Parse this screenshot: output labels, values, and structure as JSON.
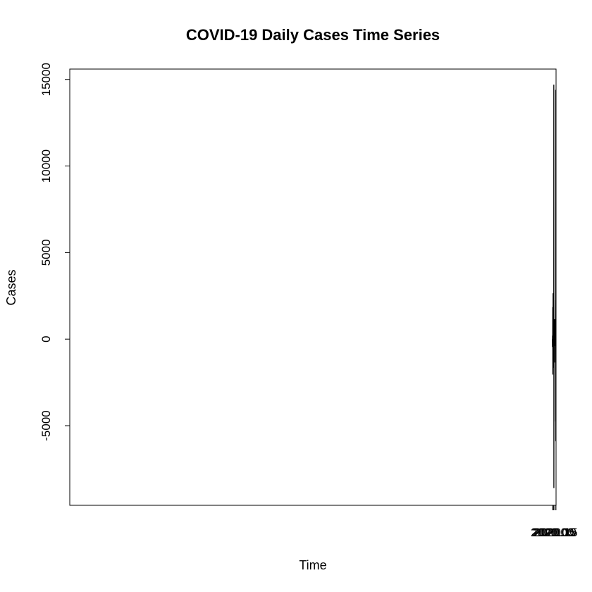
{
  "chart_data": {
    "type": "line",
    "title": "COVID-19 Daily Cases Time Series",
    "xlabel": "Time",
    "ylabel": "Cases",
    "xlim": [
      1999.9944,
      2020.1536
    ],
    "ylim": [
      -9600,
      15600
    ],
    "x_ticks": [
      2020.0,
      2020.05,
      2020.1,
      2020.15
    ],
    "x_tick_labels": [
      "2020.00",
      "2020.05",
      "2020.10",
      "2020.15"
    ],
    "y_ticks": [
      -5000,
      0,
      5000,
      10000,
      15000
    ],
    "y_tick_labels": [
      "-5000",
      "0",
      "5000",
      "10000",
      "15000"
    ],
    "grid": false,
    "line_color": "#000000",
    "series": [
      {
        "x_start": 2020.0,
        "x_step": 0.00274,
        "values": [
          0,
          -450,
          180,
          200,
          180,
          120,
          1850,
          -2050,
          1500,
          -350,
          450,
          2650,
          -1650,
          950,
          -250,
          -550,
          400,
          -850,
          300,
          -400,
          -600,
          -1650,
          14700,
          -8600,
          -4250,
          50,
          -150,
          -150,
          -1350,
          50,
          50,
          1150,
          -1350,
          200,
          250,
          150,
          400,
          0,
          550,
          500,
          -400,
          600,
          -250,
          500,
          1150,
          150,
          -50,
          -200,
          1300,
          2250,
          -4750,
          14400,
          -5900,
          450,
          2750
        ]
      }
    ]
  }
}
